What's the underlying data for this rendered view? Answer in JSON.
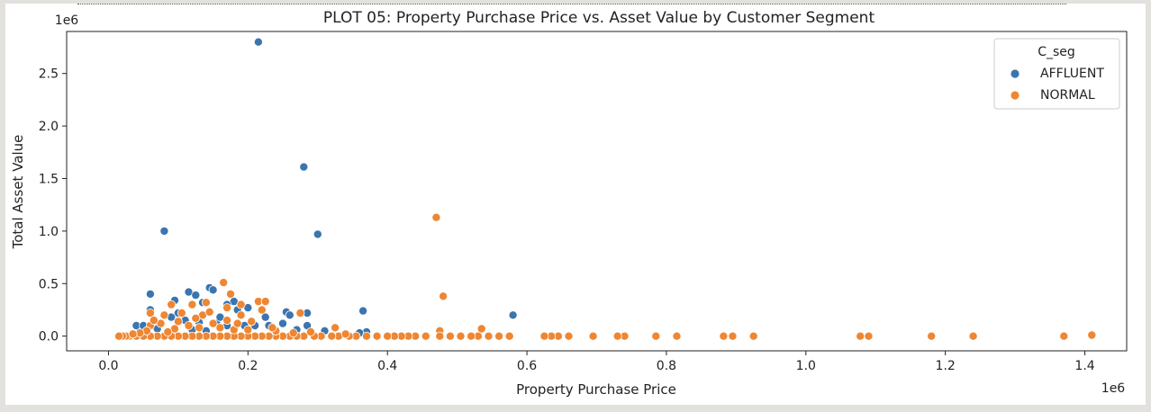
{
  "chart_data": {
    "type": "scatter",
    "title": "PLOT 05: Property Purchase Price vs. Asset Value by Customer Segment",
    "xlabel": "Property Purchase Price",
    "ylabel": "Total Asset Value",
    "x_offset_text": "1e6",
    "y_offset_text": "1e6",
    "xlim": [
      -0.06,
      1.46
    ],
    "ylim": [
      -0.14,
      2.9
    ],
    "xticks": [
      0.0,
      0.2,
      0.4,
      0.6,
      0.8,
      1.0,
      1.2,
      1.4
    ],
    "xtick_labels": [
      "0.0",
      "0.2",
      "0.4",
      "0.6",
      "0.8",
      "1.0",
      "1.2",
      "1.4"
    ],
    "yticks": [
      0.0,
      0.5,
      1.0,
      1.5,
      2.0,
      2.5
    ],
    "ytick_labels": [
      "0.0",
      "0.5",
      "1.0",
      "1.5",
      "2.0",
      "2.5"
    ],
    "grid": false,
    "legend": {
      "title": "C_seg",
      "placement": "top-right"
    },
    "series": [
      {
        "name": "AFFLUENT",
        "color": "#3a75b0",
        "points": [
          [
            0.215,
            2.8
          ],
          [
            0.28,
            1.61
          ],
          [
            0.3,
            0.97
          ],
          [
            0.08,
            1.0
          ],
          [
            0.58,
            0.2
          ],
          [
            0.365,
            0.24
          ],
          [
            0.06,
            0.4
          ],
          [
            0.115,
            0.42
          ],
          [
            0.125,
            0.39
          ],
          [
            0.145,
            0.46
          ],
          [
            0.15,
            0.44
          ],
          [
            0.135,
            0.32
          ],
          [
            0.18,
            0.33
          ],
          [
            0.095,
            0.34
          ],
          [
            0.2,
            0.27
          ],
          [
            0.255,
            0.23
          ],
          [
            0.26,
            0.2
          ],
          [
            0.275,
            0.22
          ],
          [
            0.285,
            0.22
          ],
          [
            0.17,
            0.3
          ],
          [
            0.185,
            0.25
          ],
          [
            0.06,
            0.25
          ],
          [
            0.1,
            0.22
          ],
          [
            0.04,
            0.1
          ],
          [
            0.05,
            0.1
          ],
          [
            0.075,
            0.12
          ],
          [
            0.09,
            0.18
          ],
          [
            0.11,
            0.15
          ],
          [
            0.13,
            0.13
          ],
          [
            0.155,
            0.12
          ],
          [
            0.17,
            0.1
          ],
          [
            0.195,
            0.1
          ],
          [
            0.21,
            0.1
          ],
          [
            0.23,
            0.1
          ],
          [
            0.25,
            0.12
          ],
          [
            0.27,
            0.06
          ],
          [
            0.285,
            0.1
          ],
          [
            0.31,
            0.05
          ],
          [
            0.37,
            0.04
          ],
          [
            0.36,
            0.03
          ],
          [
            0.07,
            0.07
          ],
          [
            0.12,
            0.06
          ],
          [
            0.16,
            0.18
          ],
          [
            0.225,
            0.18
          ],
          [
            0.14,
            0.05
          ]
        ]
      },
      {
        "name": "NORMAL",
        "color": "#ef8632",
        "points": [
          [
            0.47,
            1.13
          ],
          [
            0.48,
            0.38
          ],
          [
            0.165,
            0.51
          ],
          [
            0.175,
            0.4
          ],
          [
            0.215,
            0.33
          ],
          [
            0.225,
            0.33
          ],
          [
            0.09,
            0.3
          ],
          [
            0.12,
            0.3
          ],
          [
            0.14,
            0.32
          ],
          [
            0.275,
            0.22
          ],
          [
            0.17,
            0.27
          ],
          [
            0.19,
            0.3
          ],
          [
            0.105,
            0.22
          ],
          [
            0.06,
            0.22
          ],
          [
            0.08,
            0.2
          ],
          [
            0.135,
            0.2
          ],
          [
            0.19,
            0.2
          ],
          [
            0.22,
            0.25
          ],
          [
            0.325,
            0.08
          ],
          [
            0.535,
            0.07
          ],
          [
            0.475,
            0.05
          ],
          [
            1.41,
            0.01
          ],
          [
            1.37,
            0.0
          ],
          [
            1.24,
            0.0
          ],
          [
            1.18,
            0.0
          ],
          [
            1.09,
            0.0
          ],
          [
            1.078,
            0.0
          ],
          [
            0.925,
            0.0
          ],
          [
            0.895,
            0.0
          ],
          [
            0.882,
            0.0
          ],
          [
            0.815,
            0.0
          ],
          [
            0.785,
            0.0
          ],
          [
            0.74,
            0.0
          ],
          [
            0.73,
            0.0
          ],
          [
            0.695,
            0.0
          ],
          [
            0.66,
            0.0
          ],
          [
            0.645,
            0.0
          ],
          [
            0.635,
            0.0
          ],
          [
            0.625,
            0.0
          ],
          [
            0.575,
            0.0
          ],
          [
            0.56,
            0.0
          ],
          [
            0.545,
            0.0
          ],
          [
            0.53,
            0.0
          ],
          [
            0.52,
            0.0
          ],
          [
            0.505,
            0.0
          ],
          [
            0.49,
            0.0
          ],
          [
            0.475,
            0.0
          ],
          [
            0.455,
            0.0
          ],
          [
            0.44,
            0.0
          ],
          [
            0.43,
            0.0
          ],
          [
            0.42,
            0.0
          ],
          [
            0.41,
            0.0
          ],
          [
            0.4,
            0.0
          ],
          [
            0.385,
            0.0
          ],
          [
            0.37,
            0.0
          ],
          [
            0.355,
            0.0
          ],
          [
            0.345,
            0.0
          ],
          [
            0.33,
            0.0
          ],
          [
            0.32,
            0.0
          ],
          [
            0.305,
            0.0
          ],
          [
            0.295,
            0.0
          ],
          [
            0.28,
            0.0
          ],
          [
            0.27,
            0.0
          ],
          [
            0.26,
            0.0
          ],
          [
            0.25,
            0.0
          ],
          [
            0.24,
            0.0
          ],
          [
            0.23,
            0.0
          ],
          [
            0.22,
            0.0
          ],
          [
            0.21,
            0.0
          ],
          [
            0.2,
            0.0
          ],
          [
            0.19,
            0.0
          ],
          [
            0.18,
            0.0
          ],
          [
            0.17,
            0.0
          ],
          [
            0.16,
            0.0
          ],
          [
            0.15,
            0.0
          ],
          [
            0.14,
            0.0
          ],
          [
            0.13,
            0.0
          ],
          [
            0.12,
            0.0
          ],
          [
            0.11,
            0.0
          ],
          [
            0.1,
            0.0
          ],
          [
            0.09,
            0.0
          ],
          [
            0.08,
            0.0
          ],
          [
            0.07,
            0.0
          ],
          [
            0.06,
            0.0
          ],
          [
            0.05,
            0.0
          ],
          [
            0.04,
            0.0
          ],
          [
            0.03,
            0.0
          ],
          [
            0.025,
            0.0
          ],
          [
            0.02,
            0.0
          ],
          [
            0.015,
            0.0
          ],
          [
            0.06,
            0.1
          ],
          [
            0.075,
            0.12
          ],
          [
            0.1,
            0.14
          ],
          [
            0.115,
            0.1
          ],
          [
            0.13,
            0.08
          ],
          [
            0.15,
            0.12
          ],
          [
            0.16,
            0.08
          ],
          [
            0.18,
            0.06
          ],
          [
            0.2,
            0.06
          ],
          [
            0.24,
            0.05
          ],
          [
            0.095,
            0.07
          ],
          [
            0.055,
            0.05
          ],
          [
            0.085,
            0.04
          ],
          [
            0.125,
            0.17
          ],
          [
            0.17,
            0.15
          ],
          [
            0.205,
            0.14
          ],
          [
            0.235,
            0.08
          ],
          [
            0.265,
            0.03
          ],
          [
            0.29,
            0.04
          ],
          [
            0.34,
            0.02
          ],
          [
            0.045,
            0.03
          ],
          [
            0.035,
            0.02
          ],
          [
            0.065,
            0.15
          ],
          [
            0.145,
            0.23
          ],
          [
            0.185,
            0.12
          ]
        ]
      }
    ]
  }
}
